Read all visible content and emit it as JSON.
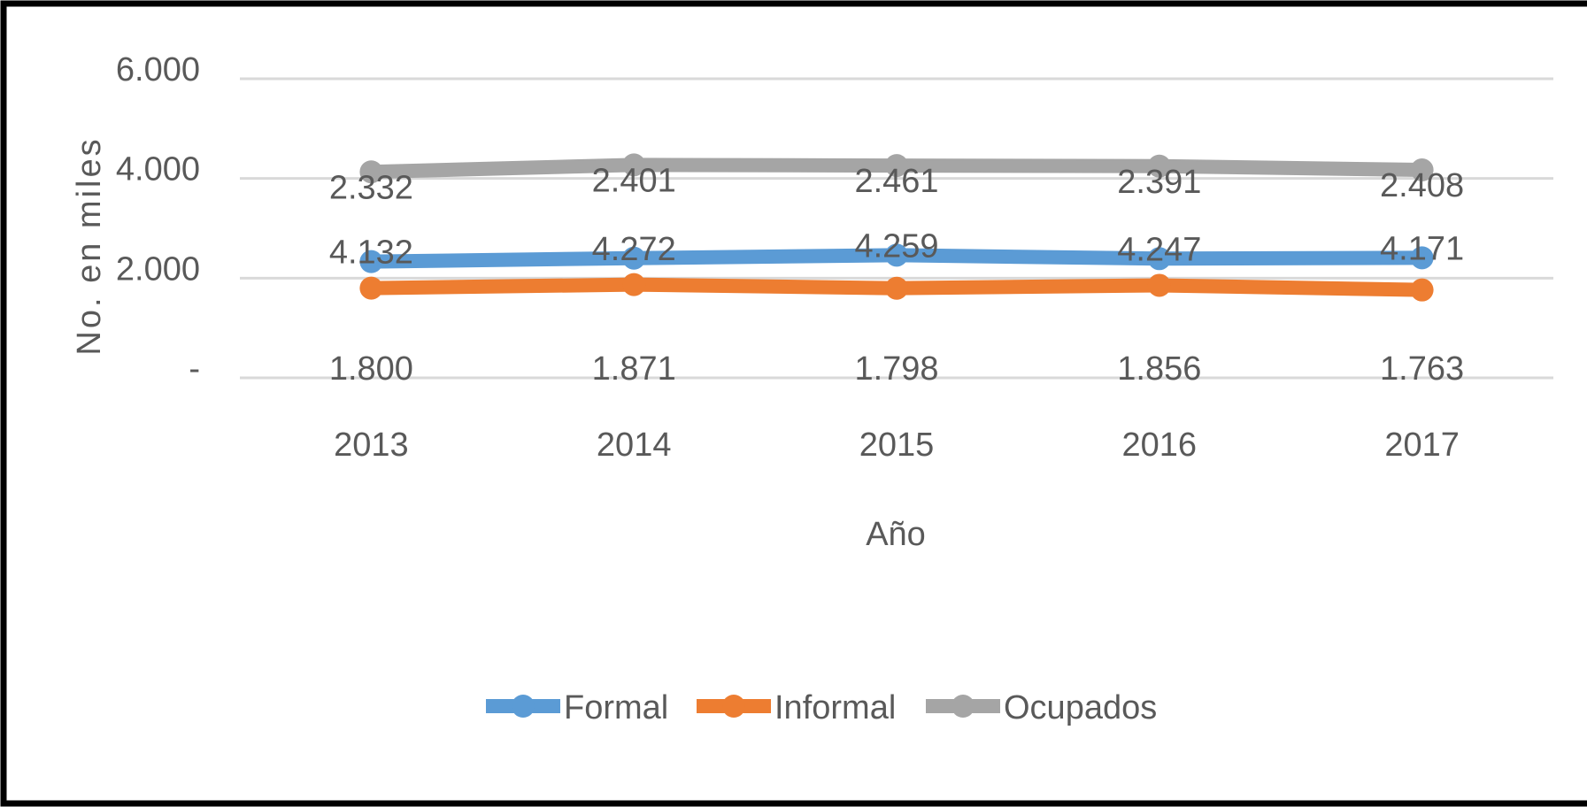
{
  "chart_data": {
    "type": "line",
    "y_label": "No. en miles",
    "x_label": "Año",
    "categories": [
      "2013",
      "2014",
      "2015",
      "2016",
      "2017"
    ],
    "series": [
      {
        "name": "Formal",
        "color": "#5b9bd5",
        "values": [
          2332,
          2401,
          2461,
          2391,
          2408
        ],
        "value_labels": [
          "2.332",
          "2.401",
          "2.461",
          "2.391",
          "2.408"
        ]
      },
      {
        "name": "Informal",
        "color": "#ed7d31",
        "values": [
          1800,
          1871,
          1798,
          1856,
          1763
        ],
        "value_labels": [
          "1.800",
          "1.871",
          "1.798",
          "1.856",
          "1.763"
        ]
      },
      {
        "name": "Ocupados",
        "color": "#a5a5a5",
        "values": [
          4132,
          4272,
          4259,
          4247,
          4171
        ],
        "value_labels": [
          "4.132",
          "4.272",
          "4.259",
          "4.247",
          "4.171"
        ]
      }
    ],
    "ylim": [
      0,
      6000
    ],
    "yticks": [
      {
        "value": 0,
        "label": "-"
      },
      {
        "value": 2000,
        "label": "2.000"
      },
      {
        "value": 4000,
        "label": "4.000"
      },
      {
        "value": 6000,
        "label": "6.000"
      }
    ],
    "grid": true,
    "legend": "bottom"
  }
}
